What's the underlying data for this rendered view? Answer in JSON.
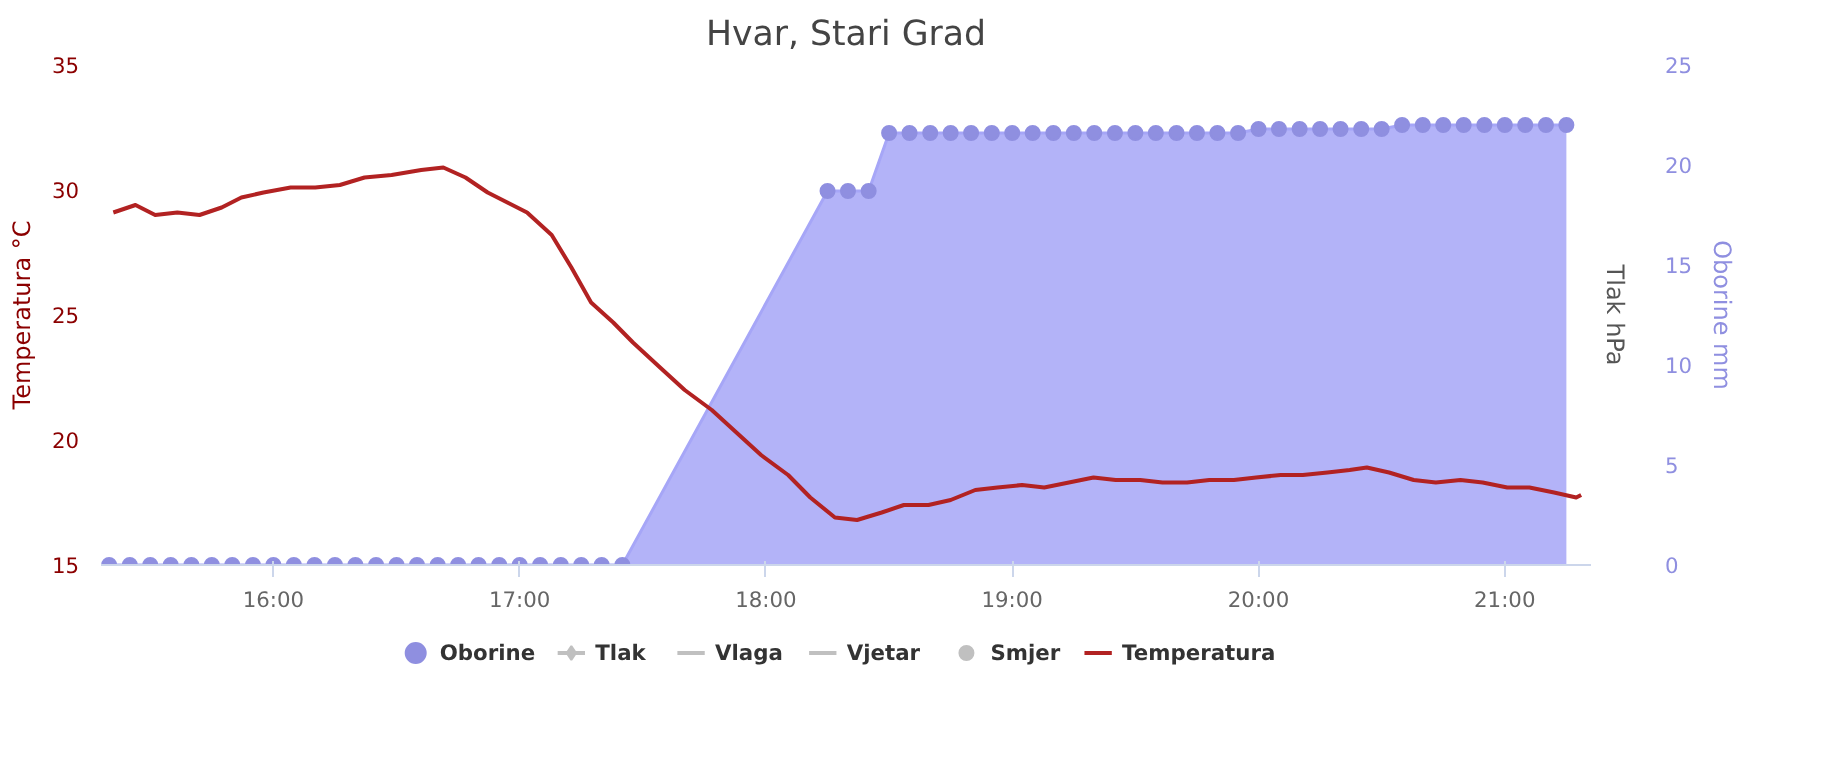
{
  "chart_data": {
    "type": "line",
    "title": "Hvar, Stari Grad",
    "ylabel": "Temperatura °C",
    "y2label": "Oborine mm",
    "y3label": "Tlak hPa",
    "xlim": [
      15.3,
      21.35
    ],
    "xticks": [
      {
        "value": 16,
        "label": "16:00"
      },
      {
        "value": 17,
        "label": "17:00"
      },
      {
        "value": 18,
        "label": "18:00"
      },
      {
        "value": 19,
        "label": "19:00"
      },
      {
        "value": 20,
        "label": "20:00"
      },
      {
        "value": 21,
        "label": "21:00"
      }
    ],
    "ylim": [
      15,
      35
    ],
    "yticks": [
      15,
      20,
      25,
      30,
      35
    ],
    "y2lim": [
      0,
      25
    ],
    "y2ticks": [
      0,
      5,
      10,
      15,
      20,
      25
    ],
    "grid": false,
    "legend": "bottom",
    "series": [
      {
        "name": "Oborine",
        "type": "area",
        "axis": "y2",
        "marker": "circle",
        "color": "#a6a6f7",
        "x": [
          15.333,
          15.417,
          15.5,
          15.583,
          15.667,
          15.75,
          15.833,
          15.917,
          16.0,
          16.083,
          16.167,
          16.25,
          16.333,
          16.417,
          16.5,
          16.583,
          16.667,
          16.75,
          16.833,
          16.917,
          17.0,
          17.083,
          17.167,
          17.25,
          17.333,
          17.417,
          18.25,
          18.333,
          18.417,
          18.5,
          18.583,
          18.667,
          18.75,
          18.833,
          18.917,
          19.0,
          19.083,
          19.167,
          19.25,
          19.333,
          19.417,
          19.5,
          19.583,
          19.667,
          19.75,
          19.833,
          19.917,
          20.0,
          20.083,
          20.167,
          20.25,
          20.333,
          20.417,
          20.5,
          20.583,
          20.667,
          20.75,
          20.833,
          20.917,
          21.0,
          21.083,
          21.167,
          21.25
        ],
        "values": [
          0,
          0,
          0,
          0,
          0,
          0,
          0,
          0,
          0,
          0,
          0,
          0,
          0,
          0,
          0,
          0,
          0,
          0,
          0,
          0,
          0,
          0,
          0,
          0,
          0,
          0,
          18.7,
          18.7,
          18.7,
          21.6,
          21.6,
          21.6,
          21.6,
          21.6,
          21.6,
          21.6,
          21.6,
          21.6,
          21.6,
          21.6,
          21.6,
          21.6,
          21.6,
          21.6,
          21.6,
          21.6,
          21.6,
          21.8,
          21.8,
          21.8,
          21.8,
          21.8,
          21.8,
          21.8,
          22.0,
          22.0,
          22.0,
          22.0,
          22.0,
          22.0,
          22.0,
          22.0,
          22.0
        ]
      },
      {
        "name": "Tlak",
        "type": "line",
        "marker": "diamond",
        "color": "#c0c0c0"
      },
      {
        "name": "Vlaga",
        "type": "line",
        "marker": "none",
        "color": "#c0c0c0"
      },
      {
        "name": "Vjetar",
        "type": "line",
        "marker": "none",
        "color": "#c0c0c0"
      },
      {
        "name": "Smjer",
        "type": "scatter",
        "marker": "circle",
        "color": "#c0c0c0"
      },
      {
        "name": "Temperatura",
        "marker": "none",
        "color": "#b22222",
        "x": [
          15.35,
          15.44,
          15.52,
          15.61,
          15.7,
          15.79,
          15.87,
          15.96,
          16.07,
          16.17,
          16.27,
          16.37,
          16.48,
          16.6,
          16.69,
          16.78,
          16.87,
          16.95,
          17.03,
          17.13,
          17.21,
          17.29,
          17.38,
          17.46,
          17.57,
          17.67,
          17.78,
          17.88,
          17.98,
          18.09,
          18.18,
          18.28,
          18.37,
          18.47,
          18.56,
          18.66,
          18.75,
          18.85,
          18.94,
          19.04,
          19.13,
          19.23,
          19.33,
          19.42,
          19.52,
          19.61,
          19.71,
          19.8,
          19.9,
          19.99,
          20.09,
          20.18,
          20.28,
          20.37,
          20.44,
          20.53,
          20.63,
          20.72,
          20.82,
          20.91,
          21.01,
          21.1,
          21.2,
          21.29,
          21.31
        ],
        "values": [
          29.1,
          29.4,
          29.0,
          29.1,
          29.0,
          29.3,
          29.7,
          29.9,
          30.1,
          30.1,
          30.2,
          30.5,
          30.6,
          30.8,
          30.9,
          30.5,
          29.9,
          29.5,
          29.1,
          28.2,
          26.9,
          25.5,
          24.7,
          23.9,
          22.9,
          22.0,
          21.2,
          20.3,
          19.4,
          18.6,
          17.7,
          16.9,
          16.8,
          17.1,
          17.4,
          17.4,
          17.6,
          18.0,
          18.1,
          18.2,
          18.1,
          18.3,
          18.5,
          18.4,
          18.4,
          18.3,
          18.3,
          18.4,
          18.4,
          18.5,
          18.6,
          18.6,
          18.7,
          18.8,
          18.9,
          18.7,
          18.4,
          18.3,
          18.4,
          18.3,
          18.1,
          18.1,
          17.9,
          17.7,
          17.8
        ]
      }
    ]
  }
}
